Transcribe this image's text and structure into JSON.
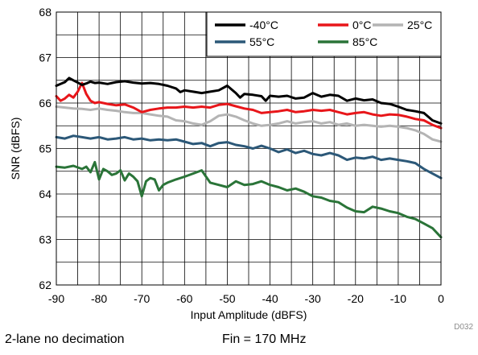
{
  "chart_data": {
    "type": "line",
    "xlabel": "Input Amplitude (dBFS)",
    "ylabel": "SNR (dBFS)",
    "xlim": [
      -90,
      0
    ],
    "ylim": [
      62,
      68
    ],
    "xticks": [
      "-90",
      "-80",
      "-70",
      "-60",
      "-50",
      "-40",
      "-30",
      "-20",
      "-10",
      "0"
    ],
    "yticks": [
      "62",
      "63",
      "64",
      "65",
      "66",
      "67",
      "68"
    ],
    "grid": true,
    "legend_position": "top-right",
    "series": [
      {
        "name": "-40°C",
        "color": "#000000",
        "points": [
          [
            -90,
            66.38
          ],
          [
            -89,
            66.42
          ],
          [
            -88,
            66.46
          ],
          [
            -87,
            66.55
          ],
          [
            -86,
            66.5
          ],
          [
            -85,
            66.45
          ],
          [
            -84,
            66.4
          ],
          [
            -83,
            66.43
          ],
          [
            -82,
            66.47
          ],
          [
            -81,
            66.44
          ],
          [
            -80,
            66.45
          ],
          [
            -78,
            66.42
          ],
          [
            -76,
            66.46
          ],
          [
            -74,
            66.48
          ],
          [
            -72,
            66.45
          ],
          [
            -70,
            66.43
          ],
          [
            -68,
            66.44
          ],
          [
            -66,
            66.42
          ],
          [
            -64,
            66.38
          ],
          [
            -62,
            66.32
          ],
          [
            -61,
            66.24
          ],
          [
            -60,
            66.28
          ],
          [
            -58,
            66.25
          ],
          [
            -56,
            66.22
          ],
          [
            -54,
            66.25
          ],
          [
            -52,
            66.28
          ],
          [
            -50,
            66.38
          ],
          [
            -48,
            66.22
          ],
          [
            -47,
            66.12
          ],
          [
            -46,
            66.2
          ],
          [
            -44,
            66.18
          ],
          [
            -42,
            66.15
          ],
          [
            -41,
            66.05
          ],
          [
            -40,
            66.16
          ],
          [
            -38,
            66.14
          ],
          [
            -36,
            66.16
          ],
          [
            -34,
            66.1
          ],
          [
            -32,
            66.12
          ],
          [
            -30,
            66.22
          ],
          [
            -28,
            66.14
          ],
          [
            -26,
            66.18
          ],
          [
            -24,
            66.16
          ],
          [
            -22,
            66.05
          ],
          [
            -20,
            66.1
          ],
          [
            -18,
            66.06
          ],
          [
            -16,
            66.08
          ],
          [
            -14,
            66.0
          ],
          [
            -12,
            65.98
          ],
          [
            -10,
            65.92
          ],
          [
            -8,
            65.85
          ],
          [
            -6,
            65.82
          ],
          [
            -4,
            65.78
          ],
          [
            -2,
            65.62
          ],
          [
            0,
            65.55
          ]
        ]
      },
      {
        "name": "0°C",
        "color": "#e8161a",
        "points": [
          [
            -90,
            66.15
          ],
          [
            -89,
            66.05
          ],
          [
            -88,
            66.1
          ],
          [
            -87,
            66.18
          ],
          [
            -86,
            66.12
          ],
          [
            -85,
            66.25
          ],
          [
            -84,
            66.44
          ],
          [
            -83,
            66.2
          ],
          [
            -82,
            66.05
          ],
          [
            -81,
            66.0
          ],
          [
            -80,
            66.02
          ],
          [
            -78,
            65.98
          ],
          [
            -76,
            65.95
          ],
          [
            -74,
            65.97
          ],
          [
            -72,
            65.9
          ],
          [
            -70,
            65.8
          ],
          [
            -68,
            65.85
          ],
          [
            -66,
            65.88
          ],
          [
            -64,
            65.9
          ],
          [
            -62,
            65.9
          ],
          [
            -60,
            65.92
          ],
          [
            -58,
            65.9
          ],
          [
            -56,
            65.92
          ],
          [
            -54,
            65.9
          ],
          [
            -52,
            65.96
          ],
          [
            -50,
            65.98
          ],
          [
            -48,
            65.93
          ],
          [
            -46,
            65.88
          ],
          [
            -44,
            65.85
          ],
          [
            -42,
            65.78
          ],
          [
            -40,
            65.8
          ],
          [
            -38,
            65.82
          ],
          [
            -36,
            65.85
          ],
          [
            -34,
            65.8
          ],
          [
            -32,
            65.82
          ],
          [
            -30,
            65.85
          ],
          [
            -28,
            65.83
          ],
          [
            -26,
            65.85
          ],
          [
            -24,
            65.8
          ],
          [
            -22,
            65.75
          ],
          [
            -20,
            65.78
          ],
          [
            -18,
            65.8
          ],
          [
            -16,
            65.75
          ],
          [
            -14,
            65.72
          ],
          [
            -12,
            65.75
          ],
          [
            -10,
            65.74
          ],
          [
            -8,
            65.7
          ],
          [
            -6,
            65.65
          ],
          [
            -4,
            65.62
          ],
          [
            -2,
            65.52
          ],
          [
            0,
            65.45
          ]
        ]
      },
      {
        "name": "25°C",
        "color": "#b4b4b4",
        "points": [
          [
            -90,
            65.92
          ],
          [
            -88,
            65.9
          ],
          [
            -86,
            65.88
          ],
          [
            -84,
            65.87
          ],
          [
            -82,
            65.85
          ],
          [
            -80,
            65.88
          ],
          [
            -78,
            65.85
          ],
          [
            -76,
            65.83
          ],
          [
            -74,
            65.8
          ],
          [
            -72,
            65.78
          ],
          [
            -70,
            65.78
          ],
          [
            -68,
            65.75
          ],
          [
            -66,
            65.72
          ],
          [
            -64,
            65.7
          ],
          [
            -62,
            65.62
          ],
          [
            -60,
            65.6
          ],
          [
            -58,
            65.55
          ],
          [
            -56,
            65.52
          ],
          [
            -54,
            65.6
          ],
          [
            -52,
            65.72
          ],
          [
            -50,
            65.75
          ],
          [
            -48,
            65.7
          ],
          [
            -46,
            65.62
          ],
          [
            -44,
            65.55
          ],
          [
            -42,
            65.5
          ],
          [
            -40,
            65.52
          ],
          [
            -38,
            65.55
          ],
          [
            -36,
            65.6
          ],
          [
            -34,
            65.55
          ],
          [
            -32,
            65.58
          ],
          [
            -30,
            65.6
          ],
          [
            -28,
            65.55
          ],
          [
            -26,
            65.58
          ],
          [
            -24,
            65.52
          ],
          [
            -22,
            65.55
          ],
          [
            -20,
            65.5
          ],
          [
            -18,
            65.52
          ],
          [
            -16,
            65.5
          ],
          [
            -14,
            65.48
          ],
          [
            -12,
            65.5
          ],
          [
            -10,
            65.48
          ],
          [
            -8,
            65.45
          ],
          [
            -6,
            65.4
          ],
          [
            -4,
            65.32
          ],
          [
            -2,
            65.2
          ],
          [
            0,
            65.15
          ]
        ]
      },
      {
        "name": "55°C",
        "color": "#2c5878",
        "points": [
          [
            -90,
            65.25
          ],
          [
            -88,
            65.22
          ],
          [
            -86,
            65.28
          ],
          [
            -84,
            65.25
          ],
          [
            -82,
            65.22
          ],
          [
            -80,
            65.25
          ],
          [
            -78,
            65.2
          ],
          [
            -76,
            65.22
          ],
          [
            -74,
            65.25
          ],
          [
            -72,
            65.2
          ],
          [
            -70,
            65.22
          ],
          [
            -68,
            65.18
          ],
          [
            -66,
            65.2
          ],
          [
            -64,
            65.18
          ],
          [
            -62,
            65.2
          ],
          [
            -60,
            65.15
          ],
          [
            -58,
            65.1
          ],
          [
            -56,
            65.12
          ],
          [
            -54,
            65.05
          ],
          [
            -52,
            65.12
          ],
          [
            -50,
            65.14
          ],
          [
            -48,
            65.08
          ],
          [
            -46,
            65.05
          ],
          [
            -44,
            65.0
          ],
          [
            -42,
            65.06
          ],
          [
            -40,
            65.0
          ],
          [
            -38,
            64.92
          ],
          [
            -36,
            64.98
          ],
          [
            -34,
            64.9
          ],
          [
            -32,
            64.95
          ],
          [
            -30,
            64.88
          ],
          [
            -28,
            64.85
          ],
          [
            -26,
            64.9
          ],
          [
            -24,
            64.85
          ],
          [
            -22,
            64.75
          ],
          [
            -20,
            64.8
          ],
          [
            -18,
            64.78
          ],
          [
            -16,
            64.82
          ],
          [
            -14,
            64.75
          ],
          [
            -12,
            64.78
          ],
          [
            -10,
            64.75
          ],
          [
            -8,
            64.72
          ],
          [
            -6,
            64.68
          ],
          [
            -4,
            64.55
          ],
          [
            -2,
            64.45
          ],
          [
            0,
            64.35
          ]
        ]
      },
      {
        "name": "85°C",
        "color": "#2a7438",
        "points": [
          [
            -90,
            64.6
          ],
          [
            -88,
            64.58
          ],
          [
            -86,
            64.62
          ],
          [
            -84,
            64.55
          ],
          [
            -83,
            64.6
          ],
          [
            -82,
            64.48
          ],
          [
            -81,
            64.7
          ],
          [
            -80,
            64.32
          ],
          [
            -79,
            64.55
          ],
          [
            -78,
            64.5
          ],
          [
            -77,
            64.42
          ],
          [
            -76,
            64.45
          ],
          [
            -75,
            64.52
          ],
          [
            -74,
            64.3
          ],
          [
            -73,
            64.45
          ],
          [
            -72,
            64.38
          ],
          [
            -71,
            64.28
          ],
          [
            -70,
            63.95
          ],
          [
            -69,
            64.28
          ],
          [
            -68,
            64.35
          ],
          [
            -67,
            64.32
          ],
          [
            -66,
            64.08
          ],
          [
            -65,
            64.2
          ],
          [
            -64,
            64.25
          ],
          [
            -62,
            64.32
          ],
          [
            -60,
            64.38
          ],
          [
            -58,
            64.45
          ],
          [
            -56,
            64.52
          ],
          [
            -54,
            64.25
          ],
          [
            -52,
            64.2
          ],
          [
            -50,
            64.15
          ],
          [
            -48,
            64.28
          ],
          [
            -46,
            64.2
          ],
          [
            -44,
            64.22
          ],
          [
            -42,
            64.28
          ],
          [
            -40,
            64.2
          ],
          [
            -38,
            64.15
          ],
          [
            -36,
            64.08
          ],
          [
            -34,
            64.12
          ],
          [
            -32,
            64.05
          ],
          [
            -30,
            63.95
          ],
          [
            -28,
            63.92
          ],
          [
            -26,
            63.85
          ],
          [
            -24,
            63.82
          ],
          [
            -22,
            63.7
          ],
          [
            -20,
            63.62
          ],
          [
            -18,
            63.6
          ],
          [
            -16,
            63.72
          ],
          [
            -14,
            63.68
          ],
          [
            -12,
            63.62
          ],
          [
            -10,
            63.58
          ],
          [
            -8,
            63.5
          ],
          [
            -6,
            63.45
          ],
          [
            -4,
            63.35
          ],
          [
            -2,
            63.25
          ],
          [
            0,
            63.05
          ]
        ]
      }
    ]
  },
  "figure_tag": "D032",
  "footer": {
    "left": "2-lane no decimation",
    "right": "Fin = 170 MHz"
  }
}
